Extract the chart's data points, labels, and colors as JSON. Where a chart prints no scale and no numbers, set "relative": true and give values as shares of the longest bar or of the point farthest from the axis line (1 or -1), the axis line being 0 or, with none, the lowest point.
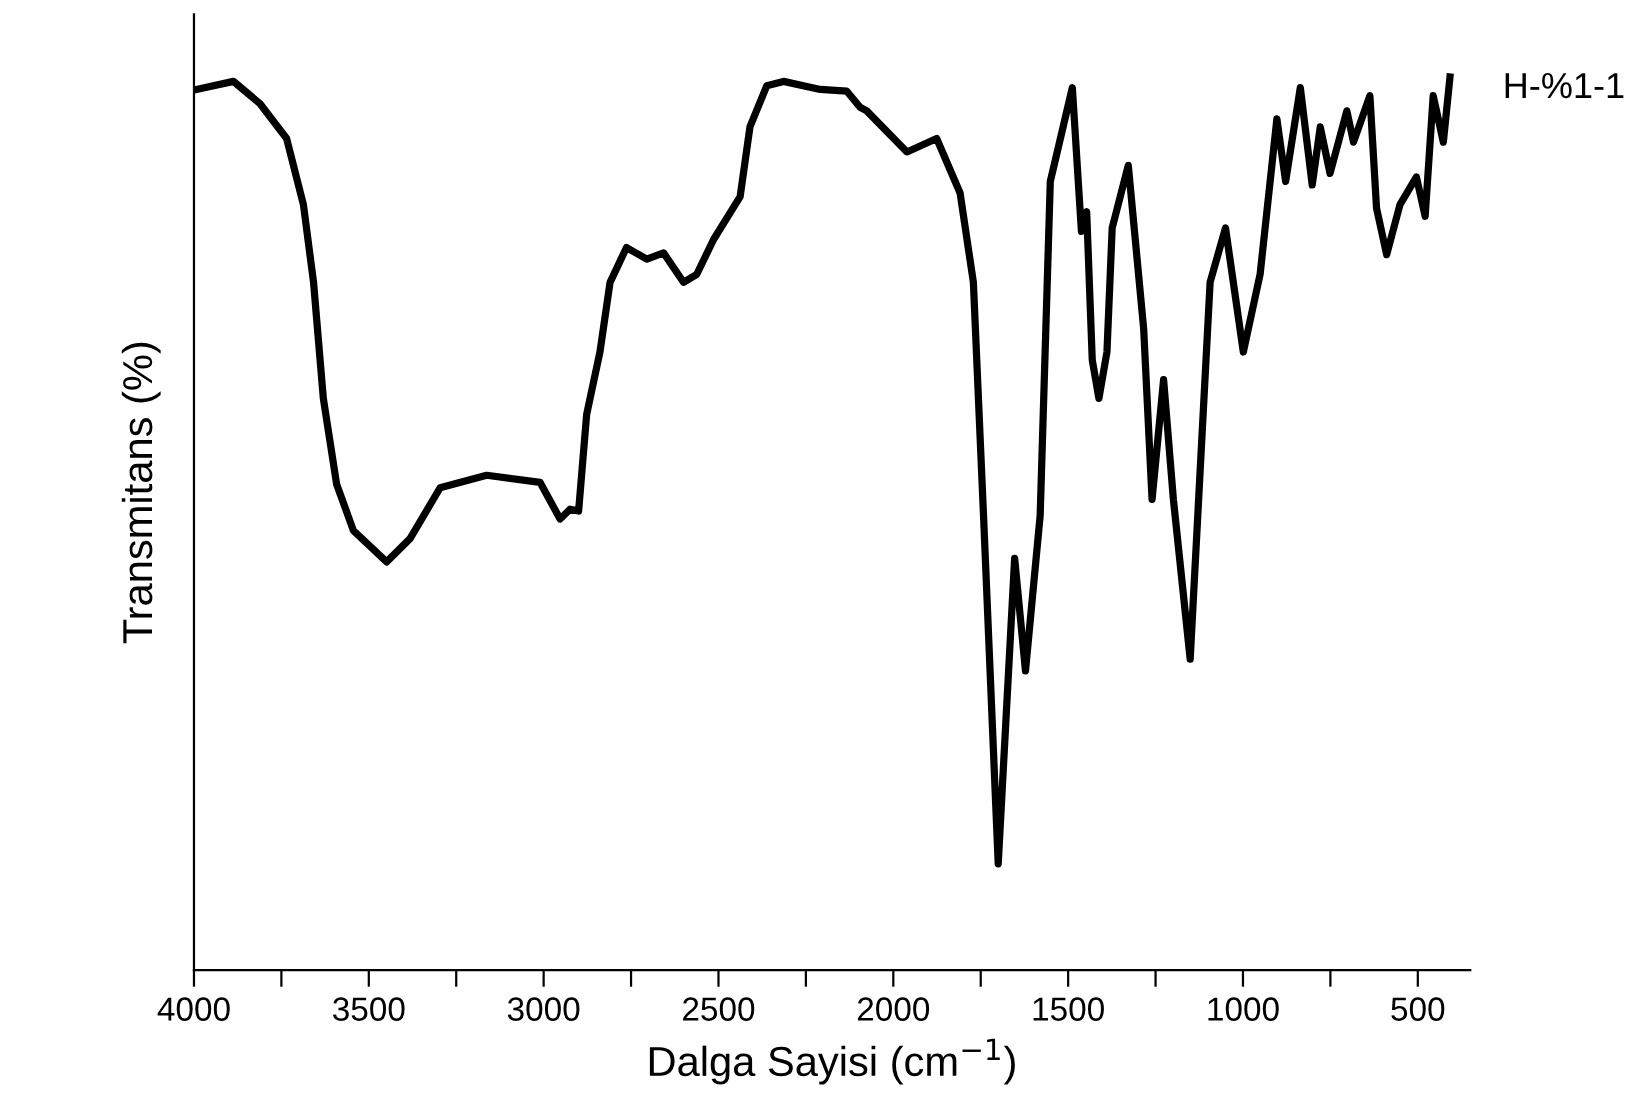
{
  "chart_data": {
    "type": "line",
    "relative": true,
    "xlabel": "Dalga Sayisi (cm$^{−1}$)",
    "ylabel": "Transmitans (%)",
    "annotations": [
      "H-%1-1"
    ],
    "xlim": [
      4000,
      350
    ],
    "xticks": [
      4000,
      {
        "value": 3750,
        "label": null
      },
      3500,
      {
        "value": 3250,
        "label": null
      },
      3000,
      {
        "value": 2750,
        "label": null
      },
      2500,
      {
        "value": 2250,
        "label": null
      },
      2000,
      {
        "value": 1750,
        "label": null
      },
      1500,
      {
        "value": 1250,
        "label": null
      },
      1000,
      {
        "value": 750,
        "label": null
      },
      500
    ],
    "grid": false,
    "legend": false,
    "marker": "none",
    "line_style": "solid",
    "series": [
      {
        "color": "#000000",
        "x": [
          3993,
          3887,
          3811,
          3735,
          3687,
          3658,
          3630,
          3592,
          3544,
          3449,
          3382,
          3296,
          3163,
          3010,
          2953,
          2924,
          2900,
          2877,
          2839,
          2810,
          2763,
          2705,
          2657,
          2600,
          2562,
          2514,
          2438,
          2410,
          2362,
          2314,
          2209,
          2133,
          2095,
          2076,
          1961,
          1876,
          1809,
          1771,
          1742,
          1700,
          1653,
          1622,
          1580,
          1551,
          1488,
          1462,
          1447,
          1431,
          1412,
          1389,
          1374,
          1328,
          1284,
          1260,
          1227,
          1199,
          1151,
          1094,
          1050,
          999,
          951,
          903,
          878,
          836,
          802,
          779,
          751,
          703,
          684,
          637,
          618,
          589,
          551,
          504,
          479,
          456,
          427,
          408
        ],
        "values": [
          0.986,
          0.995,
          0.97,
          0.931,
          0.857,
          0.77,
          0.64,
          0.544,
          0.492,
          0.457,
          0.483,
          0.54,
          0.554,
          0.546,
          0.505,
          0.516,
          0.514,
          0.622,
          0.692,
          0.77,
          0.809,
          0.796,
          0.803,
          0.77,
          0.779,
          0.818,
          0.866,
          0.944,
          0.99,
          0.995,
          0.986,
          0.984,
          0.966,
          0.962,
          0.916,
          0.931,
          0.87,
          0.77,
          0.509,
          0.119,
          0.461,
          0.335,
          0.509,
          0.883,
          0.988,
          0.827,
          0.849,
          0.683,
          0.64,
          0.692,
          0.831,
          0.901,
          0.718,
          0.527,
          0.661,
          0.527,
          0.348,
          0.77,
          0.831,
          0.692,
          0.779,
          0.953,
          0.883,
          0.988,
          0.879,
          0.944,
          0.892,
          0.962,
          0.927,
          0.979,
          0.853,
          0.801,
          0.857,
          0.888,
          0.844,
          0.979,
          0.927,
          1.0
        ]
      }
    ]
  }
}
